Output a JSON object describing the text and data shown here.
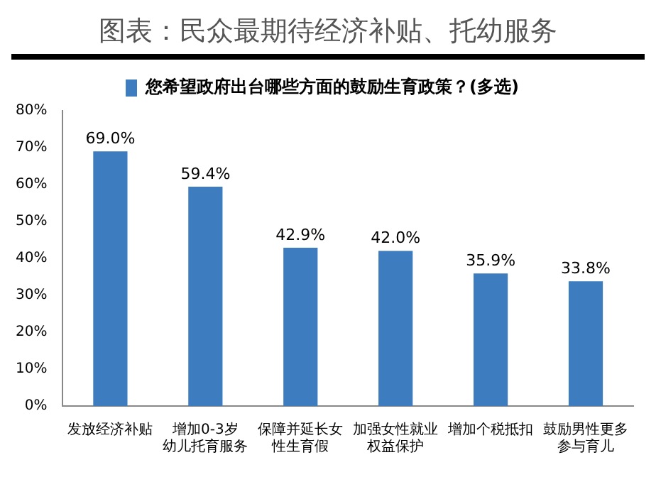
{
  "chart_data": {
    "type": "bar",
    "title": "图表：民众最期待经济补贴、托幼服务",
    "categories": [
      "发放经济补贴",
      "增加0-3岁幼儿托育服务",
      "保障并延长女性生育假",
      "加强女性就业权益保护",
      "增加个税抵扣",
      "鼓励男性更多参与育儿"
    ],
    "series": [
      {
        "name": "您希望政府出台哪些方面的鼓励生育政策？(多选)",
        "color": "#3d7dbf",
        "values": [
          69.0,
          59.4,
          42.9,
          42.0,
          35.9,
          33.8
        ],
        "value_labels": [
          "69.0%",
          "59.4%",
          "42.9%",
          "42.0%",
          "35.9%",
          "33.8%"
        ]
      }
    ],
    "ylim": [
      0,
      80
    ],
    "yticks": [
      {
        "value": 0,
        "label": "0%"
      },
      {
        "value": 10,
        "label": "10%"
      },
      {
        "value": 20,
        "label": "20%"
      },
      {
        "value": 30,
        "label": "30%"
      },
      {
        "value": 40,
        "label": "40%"
      },
      {
        "value": 50,
        "label": "50%"
      },
      {
        "value": 60,
        "label": "60%"
      },
      {
        "value": 70,
        "label": "70%"
      },
      {
        "value": 80,
        "label": "80%"
      }
    ],
    "grid": false,
    "legend": "top"
  }
}
